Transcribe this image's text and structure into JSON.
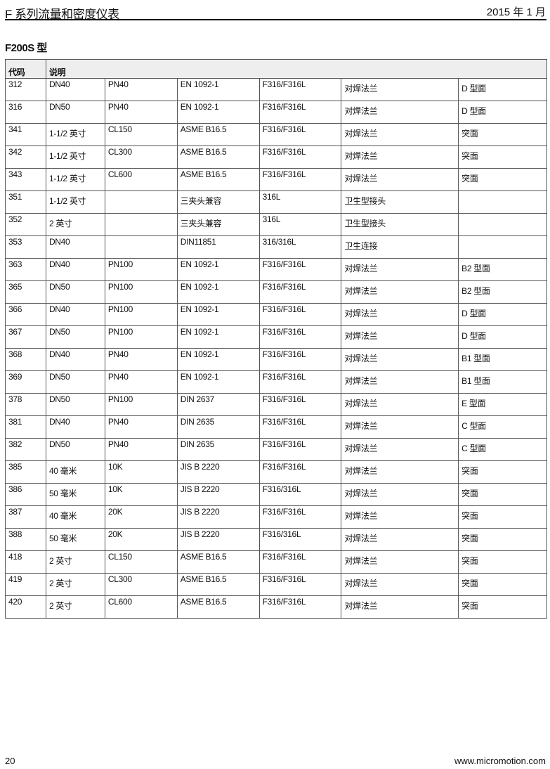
{
  "header": {
    "title": "F 系列流量和密度仪表",
    "date": "2015 年 1 月"
  },
  "section_title": "F200S 型",
  "table": {
    "headers": [
      "代码",
      "说明"
    ],
    "rows": [
      [
        "312",
        "DN40",
        "PN40",
        "EN 1092-1",
        "F316/F316L",
        "对焊法兰",
        "D 型面"
      ],
      [
        "316",
        "DN50",
        "PN40",
        "EN 1092-1",
        "F316/F316L",
        "对焊法兰",
        "D 型面"
      ],
      [
        "341",
        "1-1/2 英寸",
        "CL150",
        "ASME B16.5",
        "F316/F316L",
        "对焊法兰",
        "突面"
      ],
      [
        "342",
        "1-1/2 英寸",
        "CL300",
        "ASME B16.5",
        "F316/F316L",
        "对焊法兰",
        "突面"
      ],
      [
        "343",
        "1-1/2 英寸",
        "CL600",
        "ASME B16.5",
        "F316/F316L",
        "对焊法兰",
        "突面"
      ],
      [
        "351",
        "1-1/2 英寸",
        "",
        "三夹头兼容",
        "316L",
        "卫生型接头",
        ""
      ],
      [
        "352",
        "2 英寸",
        "",
        "三夹头兼容",
        "316L",
        "卫生型接头",
        ""
      ],
      [
        "353",
        "DN40",
        "",
        "DIN11851",
        "316/316L",
        "卫生连接",
        ""
      ],
      [
        "363",
        "DN40",
        "PN100",
        "EN 1092-1",
        "F316/F316L",
        "对焊法兰",
        "B2 型面"
      ],
      [
        "365",
        "DN50",
        "PN100",
        "EN 1092-1",
        "F316/F316L",
        "对焊法兰",
        "B2 型面"
      ],
      [
        "366",
        "DN40",
        "PN100",
        "EN 1092-1",
        "F316/F316L",
        "对焊法兰",
        "D 型面"
      ],
      [
        "367",
        "DN50",
        "PN100",
        "EN 1092-1",
        "F316/F316L",
        "对焊法兰",
        "D 型面"
      ],
      [
        "368",
        "DN40",
        "PN40",
        "EN 1092-1",
        "F316/F316L",
        "对焊法兰",
        "B1 型面"
      ],
      [
        "369",
        "DN50",
        "PN40",
        "EN 1092-1",
        "F316/F316L",
        "对焊法兰",
        "B1 型面"
      ],
      [
        "378",
        "DN50",
        "PN100",
        "DIN 2637",
        "F316/F316L",
        "对焊法兰",
        "E 型面"
      ],
      [
        "381",
        "DN40",
        "PN40",
        "DIN 2635",
        "F316/F316L",
        "对焊法兰",
        "C 型面"
      ],
      [
        "382",
        "DN50",
        "PN40",
        "DIN 2635",
        "F316/F316L",
        "对焊法兰",
        "C 型面"
      ],
      [
        "385",
        "40 毫米",
        "10K",
        "JIS B 2220",
        "F316/F316L",
        "对焊法兰",
        "突面"
      ],
      [
        "386",
        "50 毫米",
        "10K",
        "JIS B 2220",
        "F316/316L",
        "对焊法兰",
        "突面"
      ],
      [
        "387",
        "40 毫米",
        "20K",
        "JIS B 2220",
        "F316/F316L",
        "对焊法兰",
        "突面"
      ],
      [
        "388",
        "50 毫米",
        "20K",
        "JIS B 2220",
        "F316/316L",
        "对焊法兰",
        "突面"
      ],
      [
        "418",
        "2 英寸",
        "CL150",
        "ASME B16.5",
        "F316/F316L",
        "对焊法兰",
        "突面"
      ],
      [
        "419",
        "2 英寸",
        "CL300",
        "ASME B16.5",
        "F316/F316L",
        "对焊法兰",
        "突面"
      ],
      [
        "420",
        "2 英寸",
        "CL600",
        "ASME B16.5",
        "F316/F316L",
        "对焊法兰",
        "突面"
      ]
    ]
  },
  "footer": {
    "page": "20",
    "url": "www.micromotion.com"
  }
}
